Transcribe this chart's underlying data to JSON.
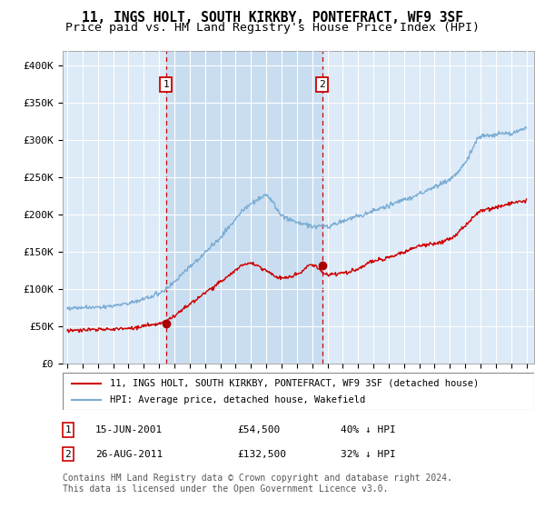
{
  "title": "11, INGS HOLT, SOUTH KIRKBY, PONTEFRACT, WF9 3SF",
  "subtitle": "Price paid vs. HM Land Registry's House Price Index (HPI)",
  "title_fontsize": 10.5,
  "subtitle_fontsize": 9.5,
  "background_color": "#ffffff",
  "plot_bg_color": "#ddeaf7",
  "shade_color": "#c8ddf0",
  "grid_color": "#ffffff",
  "ylim": [
    0,
    420000
  ],
  "yticks": [
    0,
    50000,
    100000,
    150000,
    200000,
    250000,
    300000,
    350000,
    400000
  ],
  "ytick_labels": [
    "£0",
    "£50K",
    "£100K",
    "£150K",
    "£200K",
    "£250K",
    "£300K",
    "£350K",
    "£400K"
  ],
  "xlim_start": 1994.7,
  "xlim_end": 2025.5,
  "sale1_x": 2001.45,
  "sale1_y": 54500,
  "sale1_label": "1",
  "sale1_date": "15-JUN-2001",
  "sale1_price": "£54,500",
  "sale1_hpi": "40% ↓ HPI",
  "sale2_x": 2011.65,
  "sale2_y": 132500,
  "sale2_label": "2",
  "sale2_date": "26-AUG-2011",
  "sale2_price": "£132,500",
  "sale2_hpi": "32% ↓ HPI",
  "red_line_color": "#cc0000",
  "blue_line_color": "#7aadd4",
  "marker_color": "#aa0000",
  "dashed_line_color": "#cc0000",
  "legend_entry1": "11, INGS HOLT, SOUTH KIRKBY, PONTEFRACT, WF9 3SF (detached house)",
  "legend_entry2": "HPI: Average price, detached house, Wakefield",
  "footer1": "Contains HM Land Registry data © Crown copyright and database right 2024.",
  "footer2": "This data is licensed under the Open Government Licence v3.0.",
  "tick_fontsize": 8,
  "footer_fontsize": 7,
  "annotation_fontsize": 8
}
